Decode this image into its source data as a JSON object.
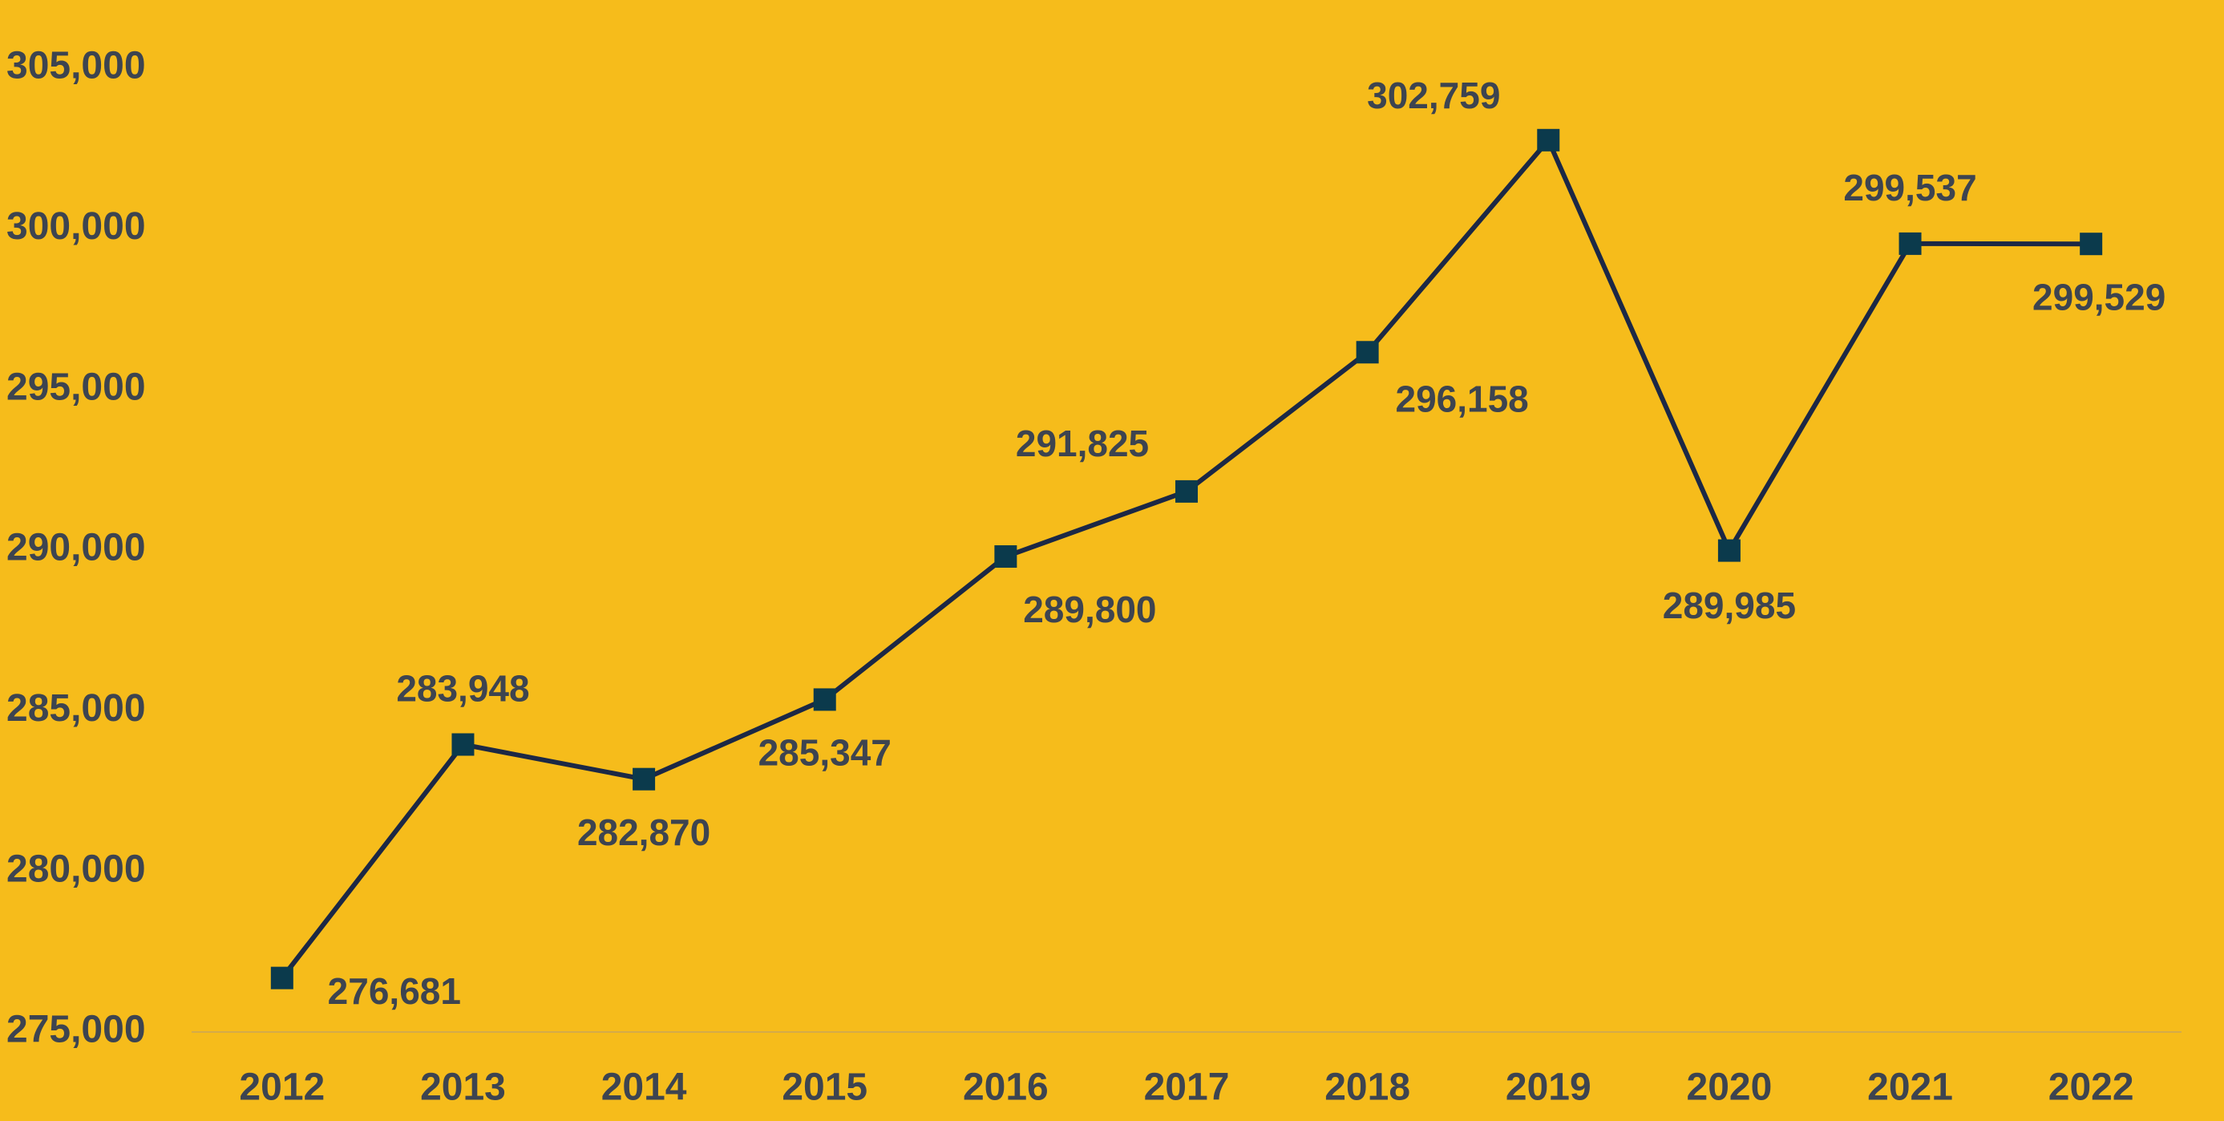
{
  "chart_data": {
    "type": "line",
    "categories": [
      "2012",
      "2013",
      "2014",
      "2015",
      "2016",
      "2017",
      "2018",
      "2019",
      "2020",
      "2021",
      "2022"
    ],
    "series": [
      {
        "name": "Value",
        "color": "#1c2845",
        "marker_color": "#0b3a4c",
        "values": [
          276681,
          283948,
          282870,
          285347,
          289800,
          291825,
          296158,
          302759,
          289985,
          299537,
          299529
        ],
        "value_labels": [
          "276,681",
          "283,948",
          "282,870",
          "285,347",
          "289,800",
          "291,825",
          "296,158",
          "302,759",
          "289,985",
          "299,537",
          "299,529"
        ]
      }
    ],
    "ylim": [
      275000,
      305000
    ],
    "yticks": [
      {
        "value": 275000,
        "label": "275,000"
      },
      {
        "value": 280000,
        "label": "280,000"
      },
      {
        "value": 285000,
        "label": "285,000"
      },
      {
        "value": 290000,
        "label": "290,000"
      },
      {
        "value": 295000,
        "label": "295,000"
      },
      {
        "value": 300000,
        "label": "300,000"
      },
      {
        "value": 305000,
        "label": "305,000"
      }
    ],
    "grid": false
  }
}
